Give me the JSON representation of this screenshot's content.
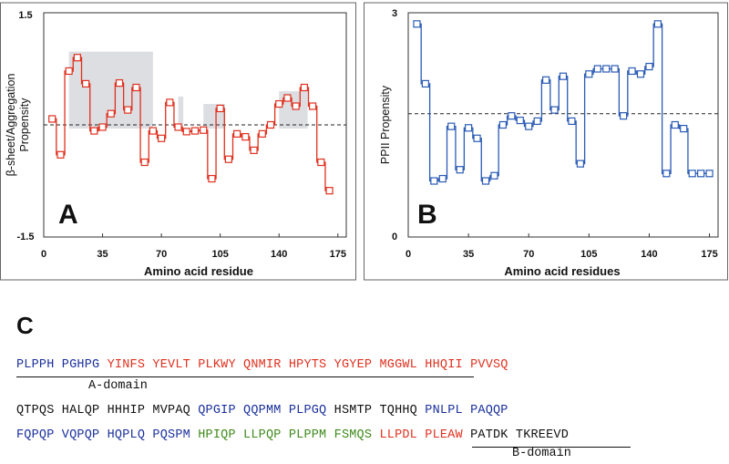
{
  "chart_data": [
    {
      "type": "line",
      "step": true,
      "panel_label": "A",
      "xlabel": "Amino acid residue",
      "ylabel": "β-sheet/Aggregation Propensity",
      "xlim": [
        0,
        180
      ],
      "ylim": [
        -1.5,
        1.5
      ],
      "xticks": [
        "0",
        "35",
        "70",
        "105",
        "140",
        "175"
      ],
      "yticks": [
        "-1.5",
        "1.5"
      ],
      "reference_line": 0.0,
      "color": "#e0301e",
      "shaded_regions_x": [
        [
          15,
          65
        ],
        [
          80,
          83
        ],
        [
          95,
          108
        ],
        [
          140,
          157
        ]
      ],
      "x": [
        5,
        10,
        15,
        20,
        25,
        30,
        35,
        40,
        45,
        50,
        55,
        60,
        65,
        70,
        75,
        80,
        85,
        90,
        95,
        100,
        105,
        110,
        115,
        120,
        125,
        130,
        135,
        140,
        145,
        150,
        155,
        160,
        165,
        170
      ],
      "y": [
        0.08,
        -0.4,
        0.72,
        0.9,
        0.55,
        -0.08,
        -0.03,
        0.15,
        0.56,
        0.2,
        0.5,
        -0.5,
        -0.08,
        -0.18,
        0.3,
        -0.03,
        -0.09,
        -0.08,
        -0.07,
        -0.72,
        0.22,
        -0.46,
        -0.12,
        -0.16,
        -0.34,
        -0.12,
        0.0,
        0.28,
        0.36,
        0.25,
        0.5,
        0.25,
        -0.5,
        -0.88
      ]
    },
    {
      "type": "line",
      "step": true,
      "panel_label": "B",
      "xlabel": "Amino acid residues",
      "ylabel": "PPII Propensity",
      "xlim": [
        0,
        180
      ],
      "ylim": [
        0,
        3
      ],
      "xticks": [
        "0",
        "35",
        "70",
        "105",
        "140",
        "175"
      ],
      "yticks": [
        "0",
        "3"
      ],
      "reference_line": 1.65,
      "color": "#2a5bb5",
      "x": [
        5,
        10,
        15,
        20,
        25,
        30,
        35,
        40,
        45,
        50,
        55,
        60,
        65,
        70,
        75,
        80,
        85,
        90,
        95,
        100,
        105,
        110,
        115,
        120,
        125,
        130,
        135,
        140,
        145,
        150,
        155,
        160,
        165,
        170,
        175
      ],
      "y": [
        2.85,
        2.05,
        0.75,
        0.78,
        1.48,
        0.9,
        1.46,
        1.32,
        0.75,
        0.82,
        1.5,
        1.62,
        1.56,
        1.48,
        1.55,
        2.1,
        1.7,
        2.15,
        1.55,
        0.98,
        2.18,
        2.25,
        2.25,
        2.25,
        1.62,
        2.22,
        2.18,
        2.28,
        2.85,
        0.85,
        1.5,
        1.45,
        0.85,
        0.85,
        0.85
      ]
    }
  ],
  "sequence": {
    "panel_label": "C",
    "colors": {
      "blue": "#1a2f9c",
      "red": "#e0301e",
      "black": "#111111",
      "green": "#3d8a1a"
    },
    "lines": [
      [
        {
          "text": "PLPPH PGHPG ",
          "color": "blue"
        },
        {
          "text": "YINFS YEVLT PLKWY QNMIR HPYTS YGYEP M",
          "color": "red"
        },
        {
          "text": "GGWL HHQII PVVSQ",
          "color": "red"
        }
      ],
      [
        {
          "text": "QTPQS HALQP HHHIP MVPAQ ",
          "color": "black"
        },
        {
          "text": "QPGIP QQPMM PLPGQ ",
          "color": "blue"
        },
        {
          "text": "HSMTP TQHHQ ",
          "color": "black"
        },
        {
          "text": "PNLPL PAQQP",
          "color": "blue"
        }
      ],
      [
        {
          "text": "FQPQP VQPQP HQPLQ PQSPM ",
          "color": "blue"
        },
        {
          "text": "HPIQP LLPQP PLPPM FSMQS ",
          "color": "green"
        },
        {
          "text": "LLPDL PLEAW ",
          "color": "red"
        },
        {
          "text": "PATDK TKREEVD",
          "color": "black"
        }
      ]
    ],
    "domains": [
      {
        "label": "A-domain"
      },
      {
        "label": "B-domain"
      }
    ]
  }
}
